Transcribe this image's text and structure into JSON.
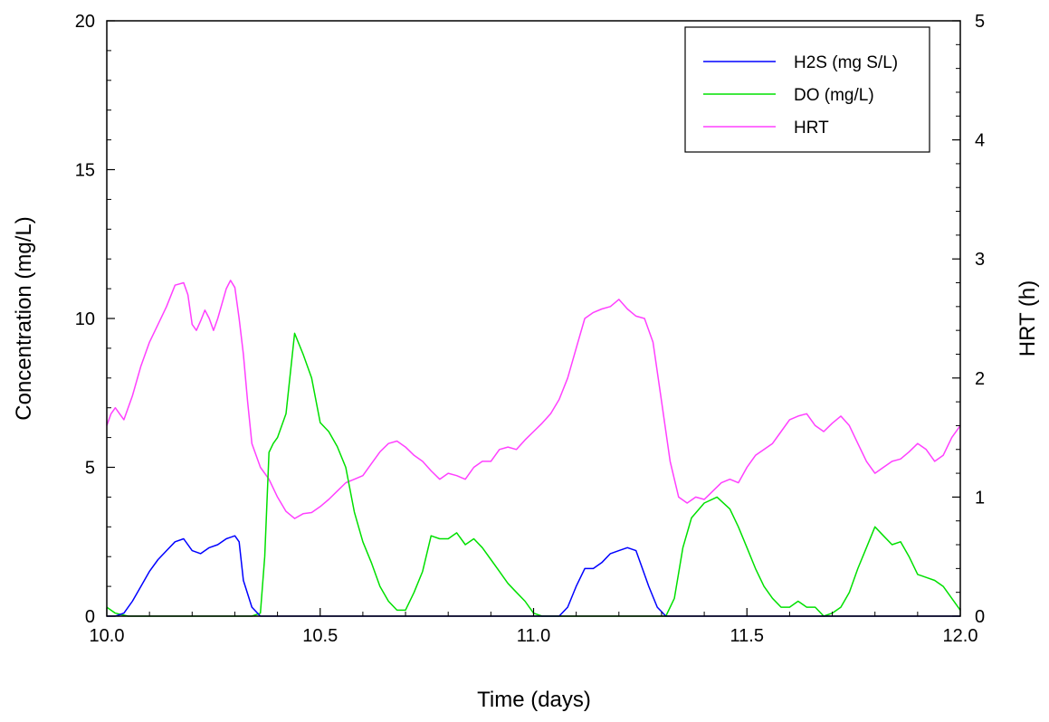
{
  "chart_data": {
    "type": "line",
    "xlabel": "Time (days)",
    "ylabel": "Concentration (mg/L)",
    "y2label": "HRT (h)",
    "xlim": [
      10.0,
      12.0
    ],
    "ylim": [
      0,
      20
    ],
    "y2lim": [
      0,
      5
    ],
    "x_ticks": [
      10.0,
      10.5,
      11.0,
      11.5,
      12.0
    ],
    "x_tick_labels": [
      "10.0",
      "10.5",
      "11.0",
      "11.5",
      "12.0"
    ],
    "y_ticks": [
      0,
      5,
      10,
      15,
      20
    ],
    "y_tick_labels": [
      "0",
      "5",
      "10",
      "15",
      "20"
    ],
    "y2_ticks": [
      0,
      1,
      2,
      3,
      4,
      5
    ],
    "y2_tick_labels": [
      "0",
      "1",
      "2",
      "3",
      "4",
      "5"
    ],
    "grid": false,
    "legend_position": "top-right",
    "series": [
      {
        "name": "H2S (mg S/L)",
        "axis": "left",
        "color": "#0000ff",
        "points": [
          [
            10.0,
            0.0
          ],
          [
            10.02,
            0.0
          ],
          [
            10.04,
            0.1
          ],
          [
            10.06,
            0.5
          ],
          [
            10.08,
            1.0
          ],
          [
            10.1,
            1.5
          ],
          [
            10.12,
            1.9
          ],
          [
            10.14,
            2.2
          ],
          [
            10.16,
            2.5
          ],
          [
            10.18,
            2.6
          ],
          [
            10.2,
            2.2
          ],
          [
            10.22,
            2.1
          ],
          [
            10.24,
            2.3
          ],
          [
            10.26,
            2.4
          ],
          [
            10.28,
            2.6
          ],
          [
            10.3,
            2.7
          ],
          [
            10.31,
            2.5
          ],
          [
            10.32,
            1.2
          ],
          [
            10.34,
            0.3
          ],
          [
            10.36,
            0.0
          ],
          [
            10.8,
            0.0
          ],
          [
            11.06,
            0.0
          ],
          [
            11.08,
            0.3
          ],
          [
            11.1,
            1.0
          ],
          [
            11.12,
            1.6
          ],
          [
            11.14,
            1.6
          ],
          [
            11.16,
            1.8
          ],
          [
            11.18,
            2.1
          ],
          [
            11.2,
            2.2
          ],
          [
            11.22,
            2.3
          ],
          [
            11.24,
            2.2
          ],
          [
            11.25,
            1.8
          ],
          [
            11.27,
            1.0
          ],
          [
            11.29,
            0.3
          ],
          [
            11.31,
            0.0
          ],
          [
            12.0,
            0.0
          ]
        ]
      },
      {
        "name": "DO (mg/L)",
        "axis": "left",
        "color": "#00e000",
        "points": [
          [
            10.0,
            0.3
          ],
          [
            10.02,
            0.1
          ],
          [
            10.05,
            0.0
          ],
          [
            10.34,
            0.0
          ],
          [
            10.36,
            0.1
          ],
          [
            10.37,
            2.0
          ],
          [
            10.38,
            5.5
          ],
          [
            10.39,
            5.8
          ],
          [
            10.4,
            6.0
          ],
          [
            10.42,
            6.8
          ],
          [
            10.44,
            9.5
          ],
          [
            10.46,
            8.8
          ],
          [
            10.48,
            8.0
          ],
          [
            10.5,
            6.5
          ],
          [
            10.52,
            6.2
          ],
          [
            10.54,
            5.7
          ],
          [
            10.56,
            5.0
          ],
          [
            10.58,
            3.5
          ],
          [
            10.6,
            2.5
          ],
          [
            10.62,
            1.8
          ],
          [
            10.64,
            1.0
          ],
          [
            10.66,
            0.5
          ],
          [
            10.68,
            0.2
          ],
          [
            10.7,
            0.2
          ],
          [
            10.72,
            0.8
          ],
          [
            10.74,
            1.5
          ],
          [
            10.76,
            2.7
          ],
          [
            10.78,
            2.6
          ],
          [
            10.8,
            2.6
          ],
          [
            10.82,
            2.8
          ],
          [
            10.84,
            2.4
          ],
          [
            10.86,
            2.6
          ],
          [
            10.88,
            2.3
          ],
          [
            10.9,
            1.9
          ],
          [
            10.92,
            1.5
          ],
          [
            10.94,
            1.1
          ],
          [
            10.96,
            0.8
          ],
          [
            10.98,
            0.5
          ],
          [
            11.0,
            0.1
          ],
          [
            11.02,
            0.0
          ],
          [
            11.31,
            0.0
          ],
          [
            11.33,
            0.6
          ],
          [
            11.35,
            2.3
          ],
          [
            11.37,
            3.3
          ],
          [
            11.4,
            3.8
          ],
          [
            11.43,
            4.0
          ],
          [
            11.46,
            3.6
          ],
          [
            11.48,
            3.0
          ],
          [
            11.5,
            2.3
          ],
          [
            11.52,
            1.6
          ],
          [
            11.54,
            1.0
          ],
          [
            11.56,
            0.6
          ],
          [
            11.58,
            0.3
          ],
          [
            11.6,
            0.3
          ],
          [
            11.62,
            0.5
          ],
          [
            11.64,
            0.3
          ],
          [
            11.66,
            0.3
          ],
          [
            11.68,
            0.0
          ],
          [
            11.7,
            0.1
          ],
          [
            11.72,
            0.3
          ],
          [
            11.74,
            0.8
          ],
          [
            11.76,
            1.6
          ],
          [
            11.78,
            2.3
          ],
          [
            11.8,
            3.0
          ],
          [
            11.82,
            2.7
          ],
          [
            11.84,
            2.4
          ],
          [
            11.86,
            2.5
          ],
          [
            11.88,
            2.0
          ],
          [
            11.9,
            1.4
          ],
          [
            11.92,
            1.3
          ],
          [
            11.94,
            1.2
          ],
          [
            11.96,
            1.0
          ],
          [
            11.98,
            0.6
          ],
          [
            12.0,
            0.2
          ]
        ]
      },
      {
        "name": "HRT",
        "axis": "right",
        "color": "#ff40ff",
        "points": [
          [
            10.0,
            1.6
          ],
          [
            10.01,
            1.7
          ],
          [
            10.02,
            1.75
          ],
          [
            10.03,
            1.7
          ],
          [
            10.04,
            1.65
          ],
          [
            10.06,
            1.85
          ],
          [
            10.08,
            2.1
          ],
          [
            10.1,
            2.3
          ],
          [
            10.12,
            2.45
          ],
          [
            10.14,
            2.6
          ],
          [
            10.16,
            2.78
          ],
          [
            10.18,
            2.8
          ],
          [
            10.19,
            2.7
          ],
          [
            10.2,
            2.45
          ],
          [
            10.21,
            2.4
          ],
          [
            10.22,
            2.48
          ],
          [
            10.23,
            2.57
          ],
          [
            10.24,
            2.5
          ],
          [
            10.25,
            2.4
          ],
          [
            10.26,
            2.5
          ],
          [
            10.28,
            2.75
          ],
          [
            10.29,
            2.82
          ],
          [
            10.3,
            2.76
          ],
          [
            10.31,
            2.5
          ],
          [
            10.32,
            2.2
          ],
          [
            10.33,
            1.8
          ],
          [
            10.34,
            1.45
          ],
          [
            10.36,
            1.25
          ],
          [
            10.38,
            1.15
          ],
          [
            10.4,
            1.0
          ],
          [
            10.42,
            0.88
          ],
          [
            10.44,
            0.82
          ],
          [
            10.46,
            0.86
          ],
          [
            10.48,
            0.87
          ],
          [
            10.5,
            0.92
          ],
          [
            10.52,
            0.98
          ],
          [
            10.54,
            1.05
          ],
          [
            10.56,
            1.12
          ],
          [
            10.58,
            1.15
          ],
          [
            10.6,
            1.18
          ],
          [
            10.62,
            1.28
          ],
          [
            10.64,
            1.38
          ],
          [
            10.66,
            1.45
          ],
          [
            10.68,
            1.47
          ],
          [
            10.7,
            1.42
          ],
          [
            10.72,
            1.35
          ],
          [
            10.74,
            1.3
          ],
          [
            10.76,
            1.22
          ],
          [
            10.78,
            1.15
          ],
          [
            10.8,
            1.2
          ],
          [
            10.82,
            1.18
          ],
          [
            10.84,
            1.15
          ],
          [
            10.86,
            1.25
          ],
          [
            10.88,
            1.3
          ],
          [
            10.9,
            1.3
          ],
          [
            10.92,
            1.4
          ],
          [
            10.94,
            1.42
          ],
          [
            10.96,
            1.4
          ],
          [
            10.98,
            1.48
          ],
          [
            11.0,
            1.55
          ],
          [
            11.02,
            1.62
          ],
          [
            11.04,
            1.7
          ],
          [
            11.06,
            1.82
          ],
          [
            11.08,
            2.0
          ],
          [
            11.1,
            2.25
          ],
          [
            11.12,
            2.5
          ],
          [
            11.14,
            2.55
          ],
          [
            11.16,
            2.58
          ],
          [
            11.18,
            2.6
          ],
          [
            11.2,
            2.66
          ],
          [
            11.22,
            2.58
          ],
          [
            11.24,
            2.52
          ],
          [
            11.26,
            2.5
          ],
          [
            11.28,
            2.3
          ],
          [
            11.3,
            1.8
          ],
          [
            11.32,
            1.3
          ],
          [
            11.34,
            1.0
          ],
          [
            11.36,
            0.95
          ],
          [
            11.38,
            1.0
          ],
          [
            11.4,
            0.98
          ],
          [
            11.42,
            1.05
          ],
          [
            11.44,
            1.12
          ],
          [
            11.46,
            1.15
          ],
          [
            11.48,
            1.12
          ],
          [
            11.5,
            1.25
          ],
          [
            11.52,
            1.35
          ],
          [
            11.54,
            1.4
          ],
          [
            11.56,
            1.45
          ],
          [
            11.58,
            1.55
          ],
          [
            11.6,
            1.65
          ],
          [
            11.62,
            1.68
          ],
          [
            11.64,
            1.7
          ],
          [
            11.66,
            1.6
          ],
          [
            11.68,
            1.55
          ],
          [
            11.7,
            1.62
          ],
          [
            11.72,
            1.68
          ],
          [
            11.74,
            1.6
          ],
          [
            11.76,
            1.45
          ],
          [
            11.78,
            1.3
          ],
          [
            11.8,
            1.2
          ],
          [
            11.82,
            1.25
          ],
          [
            11.84,
            1.3
          ],
          [
            11.86,
            1.32
          ],
          [
            11.88,
            1.38
          ],
          [
            11.9,
            1.45
          ],
          [
            11.92,
            1.4
          ],
          [
            11.94,
            1.3
          ],
          [
            11.96,
            1.35
          ],
          [
            11.98,
            1.5
          ],
          [
            12.0,
            1.6
          ]
        ]
      }
    ]
  }
}
